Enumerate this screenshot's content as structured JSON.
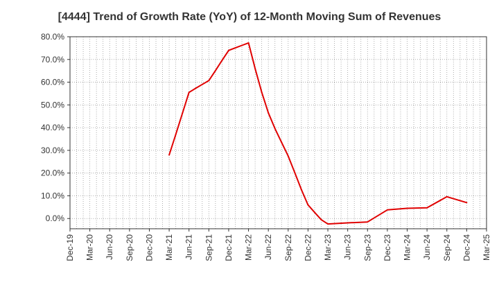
{
  "chart_data": {
    "type": "line",
    "title": "[4444]  Trend of Growth Rate (YoY) of 12-Month Moving Sum of Revenues",
    "xlabel": "",
    "ylabel": "",
    "x_tick_labels": [
      "Dec-19",
      "Mar-20",
      "Jun-20",
      "Sep-20",
      "Dec-20",
      "Mar-21",
      "Jun-21",
      "Sep-21",
      "Dec-21",
      "Mar-22",
      "Jun-22",
      "Sep-22",
      "Dec-22",
      "Mar-23",
      "Jun-23",
      "Sep-23",
      "Dec-23",
      "Mar-24",
      "Jun-24",
      "Sep-24",
      "Dec-24",
      "Mar-25"
    ],
    "y_tick_labels": [
      "0.0%",
      "10.0%",
      "20.0%",
      "30.0%",
      "40.0%",
      "50.0%",
      "60.0%",
      "70.0%",
      "80.0%"
    ],
    "ylim": [
      -4.5,
      80
    ],
    "grid": true,
    "series": [
      {
        "color": "#e00000",
        "x": [
          "Mar-21",
          "Apr-21",
          "May-21",
          "Jun-21",
          "Jul-21",
          "Aug-21",
          "Sep-21",
          "Oct-21",
          "Nov-21",
          "Dec-21",
          "Jan-22",
          "Feb-22",
          "Mar-22",
          "Apr-22",
          "May-22",
          "Jun-22",
          "Jul-22",
          "Aug-22",
          "Sep-22",
          "Oct-22",
          "Nov-22",
          "Dec-22",
          "Jan-23",
          "Feb-23",
          "Mar-23",
          "Jun-23",
          "Sep-23",
          "Dec-23",
          "Mar-24",
          "Jun-24",
          "Sep-24",
          "Dec-24"
        ],
        "values": [
          28.0,
          37.0,
          46.3,
          55.5,
          57.3,
          59.0,
          60.7,
          65.1,
          69.6,
          74.0,
          75.1,
          76.2,
          77.3,
          66.0,
          55.5,
          46.5,
          39.6,
          33.5,
          27.5,
          20.2,
          12.7,
          6.0,
          2.7,
          -0.5,
          -2.4,
          -1.9,
          -1.5,
          3.8,
          4.5,
          4.7,
          9.6,
          7.0
        ]
      }
    ]
  }
}
